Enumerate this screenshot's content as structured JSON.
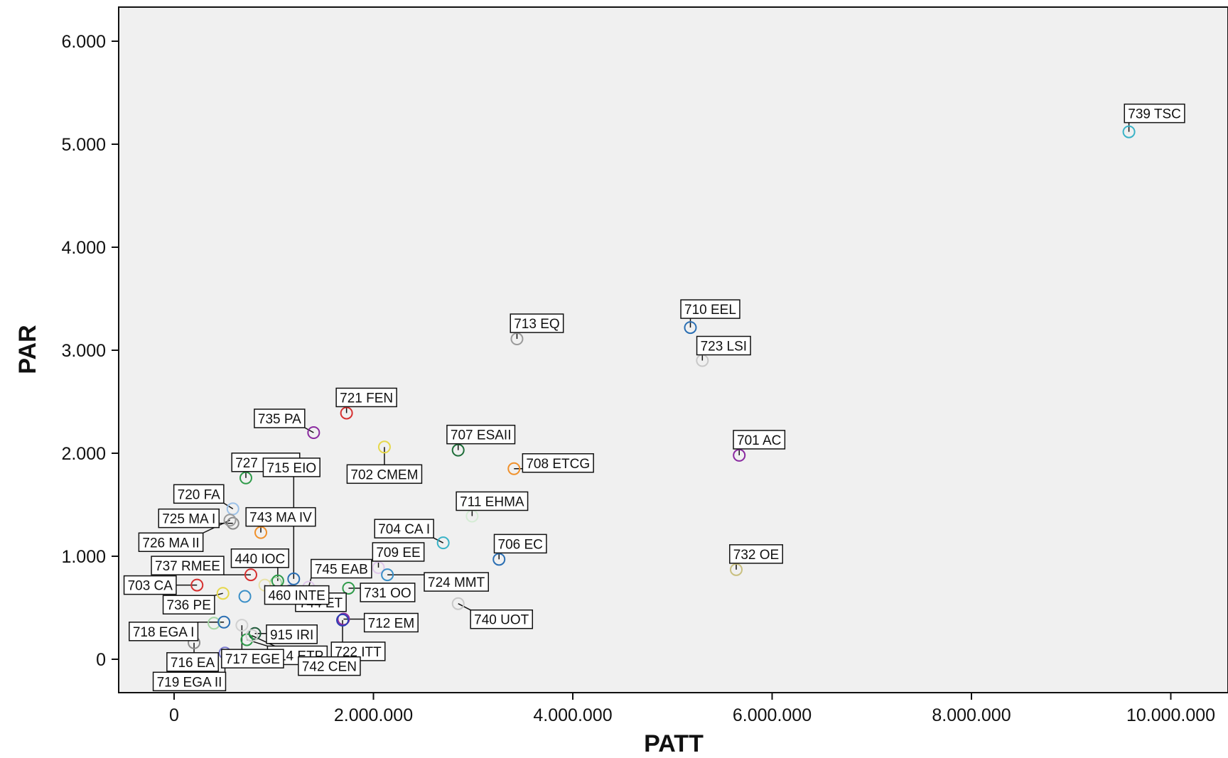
{
  "chart_data": {
    "type": "scatter",
    "title": "",
    "xlabel": "PATT",
    "ylabel": "PAR",
    "xlim": [
      -600000,
      10300000
    ],
    "ylim": [
      -330,
      6350
    ],
    "xticks": [
      {
        "v": 0,
        "label": "0"
      },
      {
        "v": 2000000,
        "label": "2.000.000"
      },
      {
        "v": 4000000,
        "label": "4.000.000"
      },
      {
        "v": 6000000,
        "label": "6.000.000"
      },
      {
        "v": 8000000,
        "label": "8.000.000"
      },
      {
        "v": 10000000,
        "label": "10.000.000"
      }
    ],
    "yticks": [
      {
        "v": 0,
        "label": "0"
      },
      {
        "v": 1000,
        "label": "1.000"
      },
      {
        "v": 2000,
        "label": "2.000"
      },
      {
        "v": 3000,
        "label": "3.000"
      },
      {
        "v": 4000,
        "label": "4.000"
      },
      {
        "v": 5000,
        "label": "5.000"
      },
      {
        "v": 6000,
        "label": "6.000"
      }
    ],
    "grid": false,
    "points": [
      {
        "label": "739 TSC",
        "x": 9580000,
        "y": 5120,
        "color": "#3ab3c7"
      },
      {
        "label": "710 EEL",
        "x": 5180000,
        "y": 3220,
        "color": "#2b6fb3"
      },
      {
        "label": "723 LSI",
        "x": 5300000,
        "y": 2900,
        "color": "#c8c8c8"
      },
      {
        "label": "713 EQ",
        "x": 3440000,
        "y": 3110,
        "color": "#9a9a9a"
      },
      {
        "label": "701 AC",
        "x": 5670000,
        "y": 1980,
        "color": "#8a2aa0"
      },
      {
        "label": "732 OE",
        "x": 5640000,
        "y": 870,
        "color": "#c9c080"
      },
      {
        "label": "721 FEN",
        "x": 1730000,
        "y": 2390,
        "color": "#d63030"
      },
      {
        "label": "735 PA",
        "x": 1400000,
        "y": 2200,
        "color": "#8a2aa0"
      },
      {
        "label": "707 ESAII",
        "x": 2850000,
        "y": 2030,
        "color": "#1f6e3a"
      },
      {
        "label": "702 CMEM",
        "x": 2110000,
        "y": 2060,
        "color": "#e6d84a"
      },
      {
        "label": "708 ETCG",
        "x": 3410000,
        "y": 1850,
        "color": "#f0902a"
      },
      {
        "label": "727 MA III",
        "x": 720000,
        "y": 1760,
        "color": "#2f9b4a"
      },
      {
        "label": "711 EHMA",
        "x": 2990000,
        "y": 1390,
        "color": "#d5ecd5"
      },
      {
        "label": "720 FA",
        "x": 590000,
        "y": 1460,
        "color": "#9cc1e8"
      },
      {
        "label": "715 EIO",
        "x": 1200000,
        "y": 780,
        "color": "#2b6fb3"
      },
      {
        "label": "725 MA I",
        "x": 590000,
        "y": 1320,
        "color": "#8a8a8a"
      },
      {
        "label": "743 MA IV",
        "x": 870000,
        "y": 1230,
        "color": "#f0902a"
      },
      {
        "label": "704 CA I",
        "x": 2700000,
        "y": 1130,
        "color": "#3ab3c7"
      },
      {
        "label": "706 EC",
        "x": 3260000,
        "y": 970,
        "color": "#2b6fb3"
      },
      {
        "label": "726 MA II",
        "x": 560000,
        "y": 1350,
        "color": "#9a9a9a"
      },
      {
        "label": "737 RMEE",
        "x": 770000,
        "y": 820,
        "color": "#d63030"
      },
      {
        "label": "440 IOC",
        "x": 1040000,
        "y": 760,
        "color": "#2f9b4a"
      },
      {
        "label": "745 EAB",
        "x": 1350000,
        "y": 700,
        "color": "#e0c8ec"
      },
      {
        "label": "709 EE",
        "x": 2050000,
        "y": 890,
        "color": "#e0c8ec"
      },
      {
        "label": "724 MMT",
        "x": 2140000,
        "y": 820,
        "color": "#3a8fc7"
      },
      {
        "label": "744 ET",
        "x": 1180000,
        "y": 650,
        "color": "#2b6fb3"
      },
      {
        "label": "731 OO",
        "x": 1750000,
        "y": 690,
        "color": "#2f9b4a"
      },
      {
        "label": "703 CA",
        "x": 230000,
        "y": 720,
        "color": "#d63030"
      },
      {
        "label": "736 PE",
        "x": 490000,
        "y": 640,
        "color": "#e6d84a"
      },
      {
        "label": "460 INTE",
        "x": 910000,
        "y": 720,
        "color": "#e8e2a8"
      },
      {
        "label": "740 UOT",
        "x": 2850000,
        "y": 540,
        "color": "#c8c8c8"
      },
      {
        "label": "712 EM",
        "x": 1700000,
        "y": 390,
        "color": "#8a2aa0"
      },
      {
        "label": "722 ITT",
        "x": 1690000,
        "y": 380,
        "color": "#2b3fb3"
      },
      {
        "label": "718 EGA I",
        "x": 500000,
        "y": 360,
        "color": "#2b6fb3"
      },
      {
        "label": "915 IRI",
        "x": 810000,
        "y": 250,
        "color": "#1f5a3a"
      },
      {
        "label": "714 ETP",
        "x": 730000,
        "y": 190,
        "color": "#2f9b4a"
      },
      {
        "label": "716 EA",
        "x": 200000,
        "y": 160,
        "color": "#8a8a8a"
      },
      {
        "label": "719 EGA II",
        "x": 510000,
        "y": 60,
        "color": "#7a7ad0"
      },
      {
        "label": "717 EGE",
        "x": 680000,
        "y": 330,
        "color": "#d0d0d0"
      },
      {
        "label": "742 CEN",
        "x": 780000,
        "y": 230,
        "color": "#d0d0d0"
      }
    ],
    "unlabeled_points": [
      {
        "x": 710000,
        "y": 610,
        "color": "#3a8fc7"
      },
      {
        "x": 400000,
        "y": 350,
        "color": "#a5d6a5"
      },
      {
        "x": 1160000,
        "y": 660,
        "color": "#2b3fb3"
      },
      {
        "x": 1020000,
        "y": 740,
        "color": "#a5d6a5"
      }
    ]
  }
}
